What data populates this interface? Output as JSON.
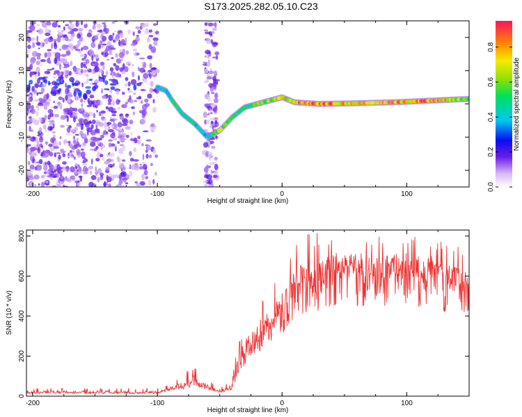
{
  "title": "S173.2025.282.05.10.C23",
  "chart_data": [
    {
      "type": "heatmap",
      "name": "spectrogram",
      "xlabel": "Height of straight line (km)",
      "ylabel": "Frequency (Hz)",
      "xlim": [
        -205,
        150
      ],
      "ylim": [
        -25,
        25
      ],
      "xticks": [
        "-200",
        "-100",
        "0",
        "100"
      ],
      "xtick_values": [
        -200,
        -100,
        0,
        100
      ],
      "yticks": [
        "-20",
        "-10",
        "0",
        "10",
        "20"
      ],
      "ytick_values": [
        -20,
        -10,
        0,
        10,
        20
      ],
      "colorbar": {
        "label": "Normalized spectral amplitude",
        "range": [
          0,
          0.95
        ],
        "ticks": [
          "0.0",
          "0.2",
          "0.4",
          "0.6",
          "0.8"
        ],
        "tick_values": [
          0,
          0.2,
          0.4,
          0.6,
          0.8
        ]
      },
      "ridge": {
        "x": [
          -100,
          -93,
          -88,
          -80,
          -70,
          -60,
          -55,
          -50,
          -40,
          -30,
          -20,
          -10,
          0,
          10,
          30,
          60,
          90,
          120,
          150
        ],
        "y": [
          5,
          4,
          1,
          -3,
          -6,
          -10,
          -9,
          -8,
          -4,
          -1,
          0,
          1,
          2,
          0.5,
          0,
          0.2,
          0.5,
          1,
          1.5
        ],
        "amplitude": [
          0.35,
          0.45,
          0.5,
          0.5,
          0.45,
          0.4,
          0.6,
          0.65,
          0.55,
          0.5,
          0.6,
          0.7,
          0.75,
          0.8,
          0.9,
          0.75,
          0.8,
          0.9,
          0.6
        ]
      },
      "noise_region_x": [
        -205,
        -100
      ],
      "noise_amplitude": [
        0.05,
        0.2
      ]
    },
    {
      "type": "line",
      "name": "snr",
      "xlabel": "Height of straight line (km)",
      "ylabel": "SNR (10 * v/v)",
      "xlim": [
        -205,
        150
      ],
      "ylim": [
        0,
        830
      ],
      "xticks": [
        "-200",
        "-100",
        "0",
        "100"
      ],
      "xtick_values": [
        -200,
        -100,
        0,
        100
      ],
      "yticks": [
        "0",
        "200",
        "400",
        "600",
        "800"
      ],
      "ytick_values": [
        0,
        200,
        400,
        600,
        800
      ],
      "color": "#ee3333",
      "x": [
        -205,
        -180,
        -160,
        -140,
        -120,
        -100,
        -90,
        -80,
        -70,
        -60,
        -55,
        -50,
        -45,
        -40,
        -35,
        -30,
        -25,
        -20,
        -15,
        -10,
        -5,
        0,
        5,
        10,
        15,
        20,
        30,
        40,
        50,
        60,
        70,
        80,
        90,
        100,
        110,
        120,
        130,
        140,
        150
      ],
      "baseline": [
        15,
        18,
        16,
        17,
        15,
        16,
        35,
        45,
        70,
        40,
        30,
        25,
        30,
        40,
        130,
        210,
        270,
        280,
        320,
        330,
        380,
        400,
        470,
        500,
        540,
        540,
        560,
        600,
        610,
        600,
        590,
        580,
        610,
        600,
        590,
        590,
        560,
        540,
        540
      ],
      "peak": [
        40,
        45,
        40,
        42,
        40,
        40,
        60,
        110,
        150,
        90,
        60,
        50,
        60,
        90,
        300,
        350,
        430,
        460,
        520,
        560,
        600,
        650,
        760,
        780,
        800,
        810,
        820,
        810,
        820,
        820,
        820,
        810,
        820,
        800,
        800,
        790,
        780,
        770,
        760
      ]
    }
  ]
}
